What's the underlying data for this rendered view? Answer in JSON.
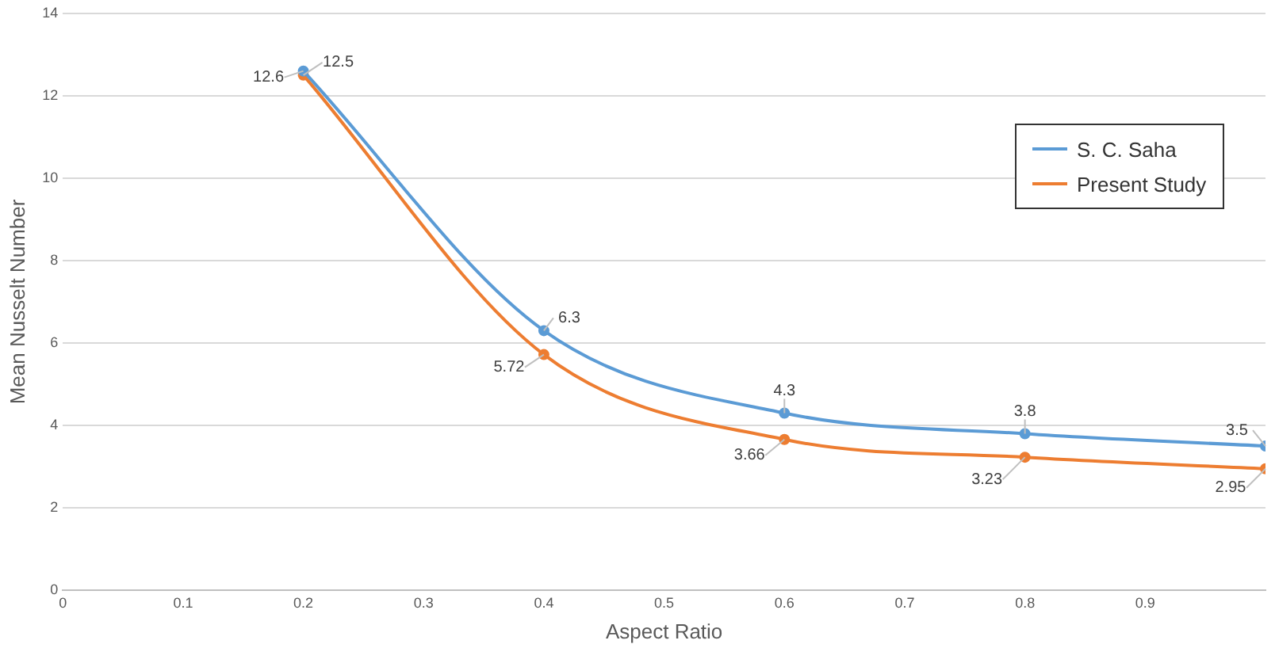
{
  "chart_data": {
    "type": "line",
    "xlabel": "Aspect Ratio",
    "ylabel": "Mean Nusselt Number",
    "x": [
      0.2,
      0.4,
      0.6,
      0.8,
      1.0
    ],
    "series": [
      {
        "name": "S. C. Saha",
        "color": "#5b9bd5",
        "values": [
          12.6,
          6.3,
          4.3,
          3.8,
          3.5
        ]
      },
      {
        "name": "Present Study",
        "color": "#ed7d31",
        "values": [
          12.5,
          5.72,
          3.66,
          3.23,
          2.95
        ]
      }
    ],
    "xlim": [
      0,
      1
    ],
    "xticks": [
      0,
      0.1,
      0.2,
      0.3,
      0.4,
      0.5,
      0.6,
      0.7,
      0.8,
      0.9
    ],
    "ylim": [
      0,
      14
    ],
    "yticks": [
      0,
      2,
      4,
      6,
      8,
      10,
      12,
      14
    ],
    "grid": "y",
    "legend": "top right",
    "marker": "circle",
    "line_style": "solid",
    "data_labels": true
  }
}
